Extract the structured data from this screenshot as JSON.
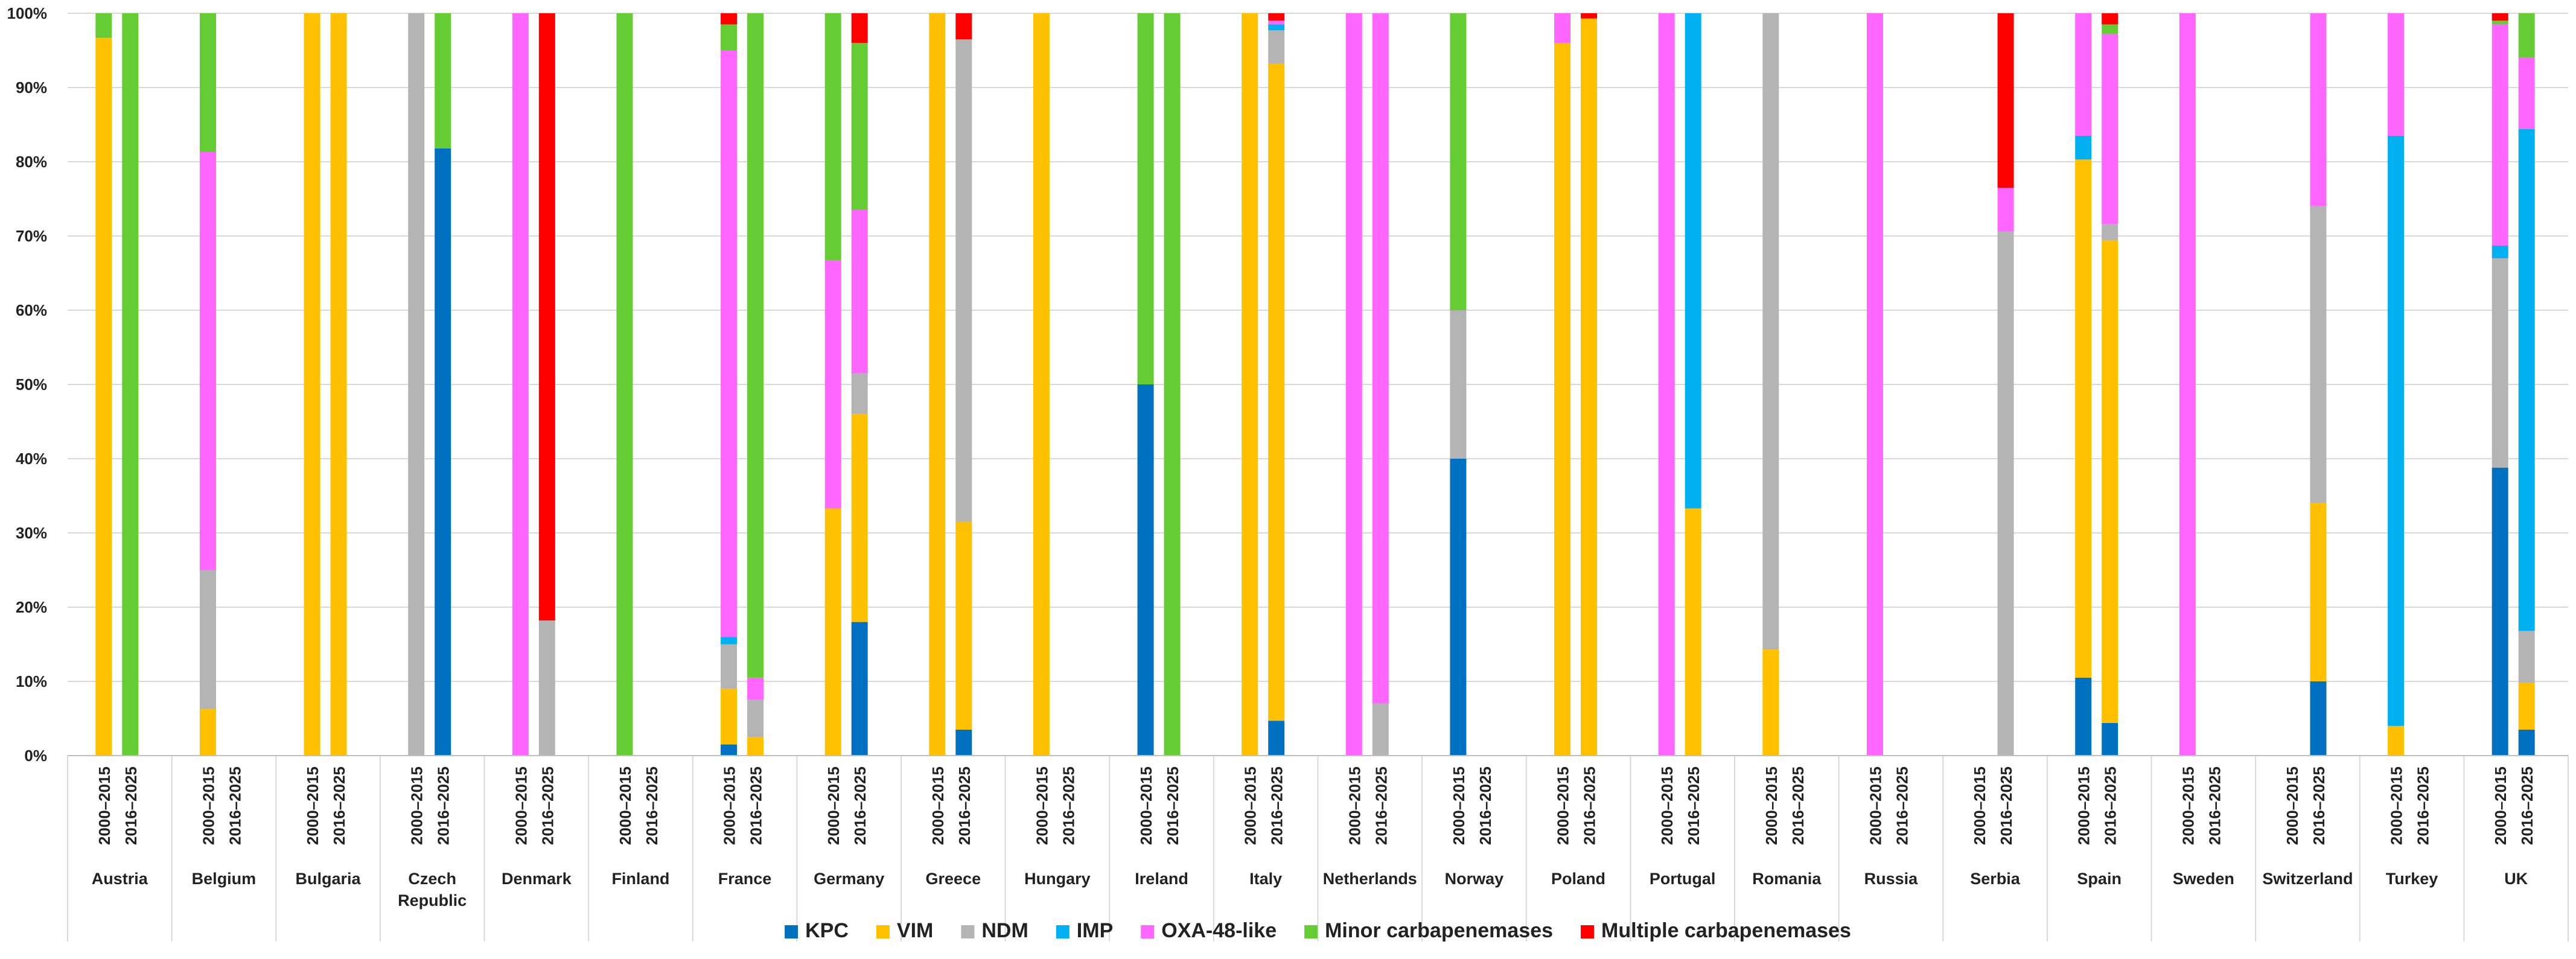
{
  "chart_data": {
    "type": "bar",
    "stacked": true,
    "normalized_percent": true,
    "ylim": [
      0,
      100
    ],
    "yticks": [
      "0%",
      "10%",
      "20%",
      "30%",
      "40%",
      "50%",
      "60%",
      "70%",
      "80%",
      "90%",
      "100%"
    ],
    "grid": true,
    "legend_position": "bottom",
    "period_labels": [
      "2000–2015",
      "2016–2025"
    ],
    "series": [
      {
        "name": "KPC",
        "color": "#0070C0"
      },
      {
        "name": "VIM",
        "color": "#FFC000"
      },
      {
        "name": "NDM",
        "color": "#B4B4B4"
      },
      {
        "name": "IMP",
        "color": "#00B0F0"
      },
      {
        "name": "OXA-48-like",
        "color": "#FF66FF"
      },
      {
        "name": "Minor carbapenemases",
        "color": "#66CC33"
      },
      {
        "name": "Multiple carbapenemases",
        "color": "#FF0000"
      }
    ],
    "groups": [
      {
        "country": "Austria",
        "bars": [
          [
            0,
            96.7,
            0,
            0,
            0,
            3.3,
            0
          ],
          [
            0,
            0,
            0,
            0,
            0,
            100,
            0
          ]
        ]
      },
      {
        "country": "Belgium",
        "bars": [
          [
            0,
            6.3,
            18.7,
            0,
            56.3,
            18.7,
            0
          ],
          [
            0,
            0,
            0,
            0,
            0,
            0,
            0
          ]
        ]
      },
      {
        "country": "Bulgaria",
        "bars": [
          [
            0,
            100,
            0,
            0,
            0,
            0,
            0
          ],
          [
            0,
            100,
            0,
            0,
            0,
            0,
            0
          ]
        ]
      },
      {
        "country": "Czech Republic",
        "bars": [
          [
            0,
            0,
            100,
            0,
            0,
            0,
            0
          ],
          [
            81.8,
            0,
            0,
            0,
            0,
            18.2,
            0
          ]
        ]
      },
      {
        "country": "Denmark",
        "bars": [
          [
            0,
            0,
            0,
            0,
            100,
            0,
            0
          ],
          [
            0,
            0,
            18.2,
            0,
            0,
            0,
            81.8
          ]
        ]
      },
      {
        "country": "Finland",
        "bars": [
          [
            0,
            0,
            0,
            0,
            0,
            100,
            0
          ],
          [
            0,
            0,
            0,
            0,
            0,
            0,
            0
          ]
        ]
      },
      {
        "country": "France",
        "bars": [
          [
            1.5,
            7.5,
            6,
            1,
            79,
            3.5,
            1.5
          ],
          [
            0,
            2.5,
            5,
            0,
            3,
            89.5,
            0
          ]
        ]
      },
      {
        "country": "Germany",
        "bars": [
          [
            0,
            33.3,
            0,
            0,
            33.4,
            33.3,
            0
          ],
          [
            18,
            28,
            5.5,
            0,
            22,
            22.5,
            4
          ]
        ]
      },
      {
        "country": "Greece",
        "bars": [
          [
            0,
            100,
            0,
            0,
            0,
            0,
            0
          ],
          [
            3.5,
            28,
            65,
            0,
            0,
            0,
            3.5
          ]
        ]
      },
      {
        "country": "Hungary",
        "bars": [
          [
            0,
            100,
            0,
            0,
            0,
            0,
            0
          ],
          [
            0,
            0,
            0,
            0,
            0,
            0,
            0
          ]
        ]
      },
      {
        "country": "Ireland",
        "bars": [
          [
            50,
            0,
            0,
            0,
            0,
            50,
            0
          ],
          [
            0,
            0,
            0,
            0,
            0,
            100,
            0
          ]
        ]
      },
      {
        "country": "Italy",
        "bars": [
          [
            0,
            100,
            0,
            0,
            0,
            0,
            0
          ],
          [
            4.7,
            88.5,
            4.5,
            0.8,
            0.5,
            0,
            1
          ]
        ]
      },
      {
        "country": "Netherlands",
        "bars": [
          [
            0,
            0,
            0,
            0,
            100,
            0,
            0
          ],
          [
            0,
            0,
            7,
            0,
            93,
            0,
            0
          ]
        ]
      },
      {
        "country": "Norway",
        "bars": [
          [
            40,
            0,
            20,
            0,
            0,
            40,
            0
          ],
          [
            0,
            0,
            0,
            0,
            0,
            0,
            0
          ]
        ]
      },
      {
        "country": "Poland",
        "bars": [
          [
            0,
            96,
            0,
            0,
            4,
            0,
            0
          ],
          [
            0,
            99.3,
            0,
            0,
            0,
            0,
            0.7
          ]
        ]
      },
      {
        "country": "Portugal",
        "bars": [
          [
            0,
            0,
            0,
            0,
            100,
            0,
            0
          ],
          [
            0,
            33.3,
            0,
            66.7,
            0,
            0,
            0
          ]
        ]
      },
      {
        "country": "Romania",
        "bars": [
          [
            0,
            14.3,
            85.7,
            0,
            0,
            0,
            0
          ],
          [
            0,
            0,
            0,
            0,
            0,
            0,
            0
          ]
        ]
      },
      {
        "country": "Russia",
        "bars": [
          [
            0,
            0,
            0,
            0,
            100,
            0,
            0
          ],
          [
            0,
            0,
            0,
            0,
            0,
            0,
            0
          ]
        ]
      },
      {
        "country": "Serbia",
        "bars": [
          [
            0,
            0,
            0,
            0,
            0,
            0,
            0
          ],
          [
            0,
            0,
            70.6,
            0,
            5.9,
            0,
            23.5
          ]
        ]
      },
      {
        "country": "Spain",
        "bars": [
          [
            10.5,
            69.8,
            0,
            3.2,
            16.5,
            0,
            0
          ],
          [
            4.4,
            65,
            2.2,
            0,
            25.6,
            1.3,
            1.5
          ]
        ]
      },
      {
        "country": "Sweden",
        "bars": [
          [
            0,
            0,
            0,
            0,
            100,
            0,
            0
          ],
          [
            0,
            0,
            0,
            0,
            0,
            0,
            0
          ]
        ]
      },
      {
        "country": "Switzerland",
        "bars": [
          [
            0,
            0,
            0,
            0,
            0,
            0,
            0
          ],
          [
            10,
            24,
            40,
            0,
            26,
            0,
            0
          ]
        ]
      },
      {
        "country": "Turkey",
        "bars": [
          [
            0,
            4,
            0,
            79.5,
            16.5,
            0,
            0
          ],
          [
            0,
            0,
            0,
            0,
            0,
            0,
            0
          ]
        ]
      },
      {
        "country": "UK",
        "bars": [
          [
            38.8,
            0,
            28.2,
            1.7,
            29.8,
            0.5,
            1
          ],
          [
            3.5,
            6.3,
            7,
            67.6,
            9.6,
            6,
            0
          ]
        ]
      }
    ]
  }
}
